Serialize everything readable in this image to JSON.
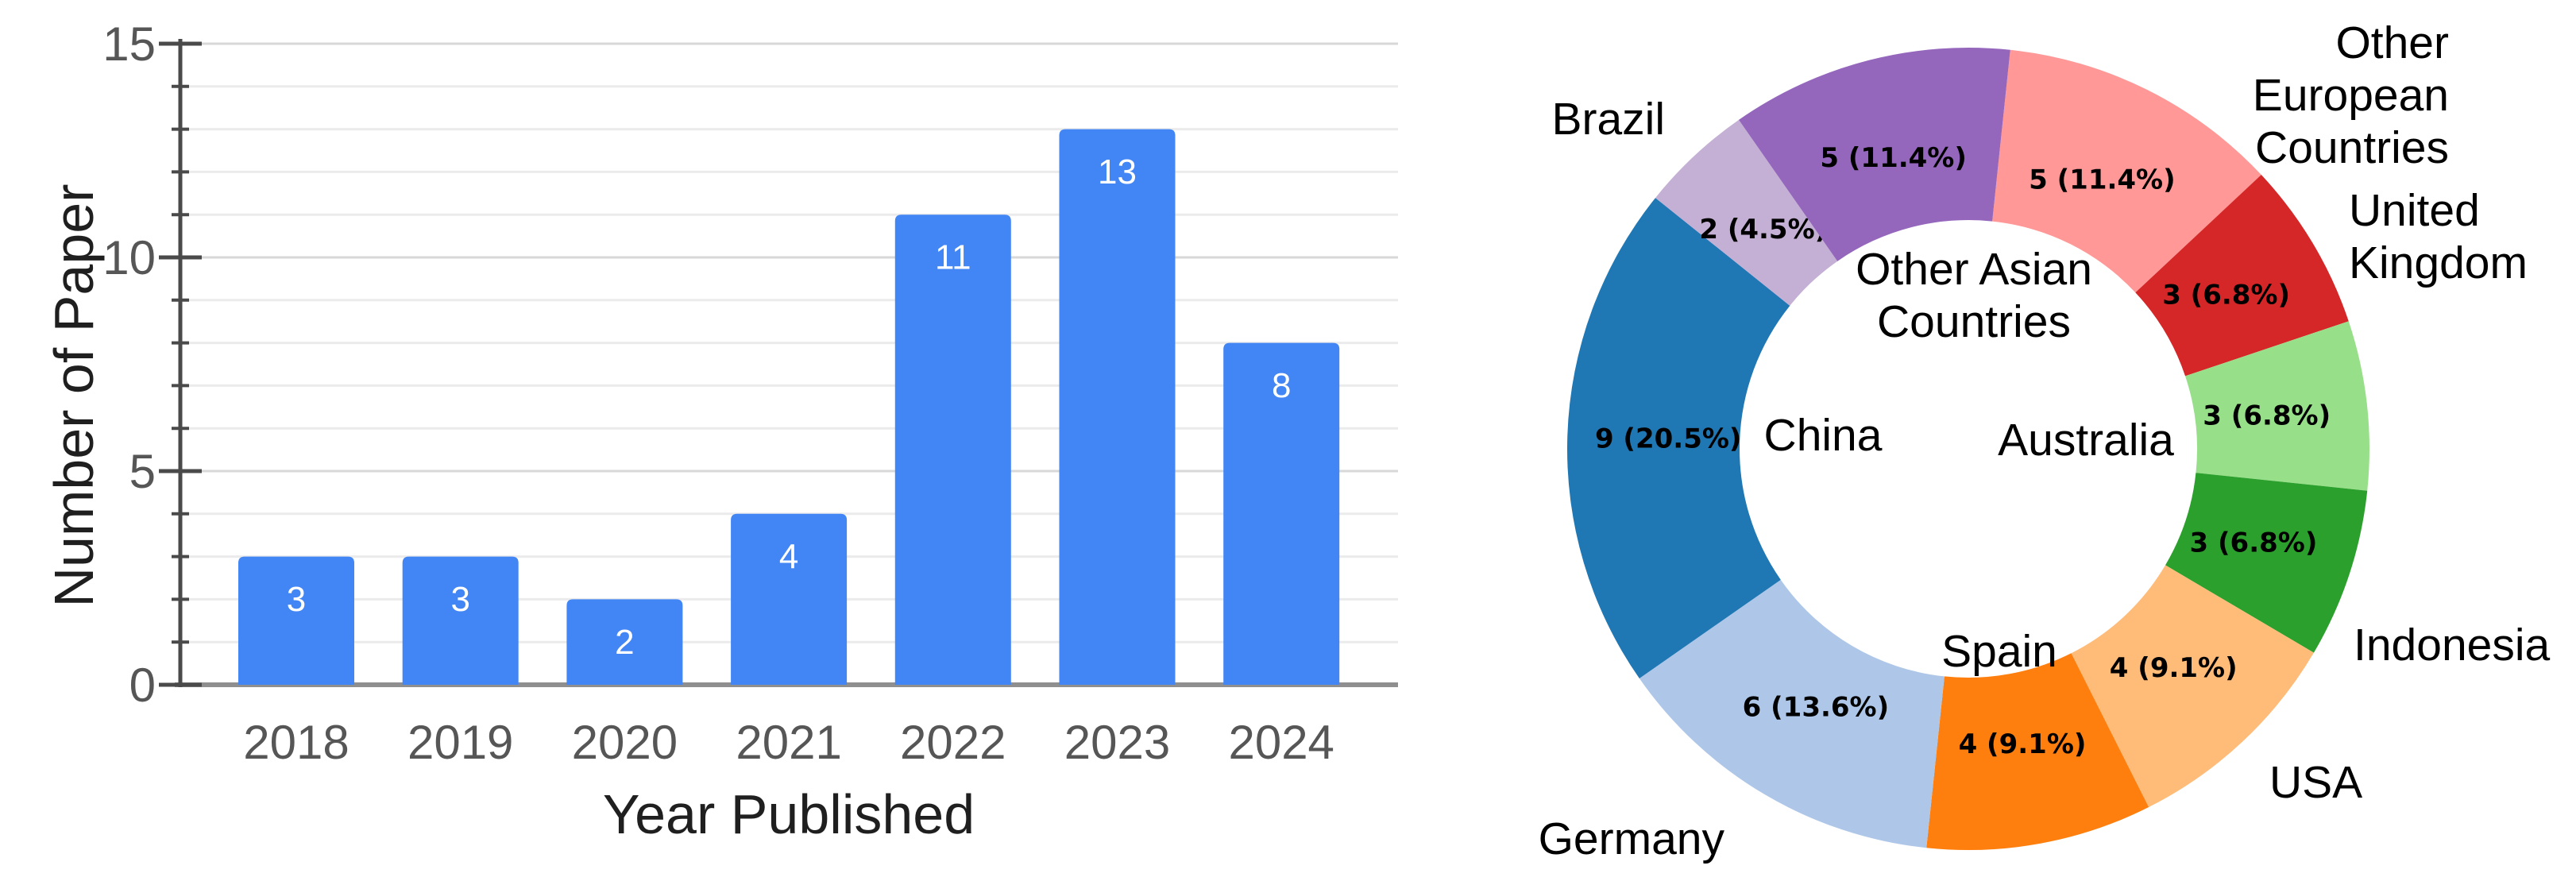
{
  "figure": {
    "background": "#ffffff",
    "left_panel": "bar chart of papers per year",
    "right_panel": "donut chart of papers per country"
  },
  "chart_data": [
    {
      "type": "bar",
      "title": "",
      "xlabel": "Year Published",
      "ylabel": "Number of Paper",
      "categories": [
        "2018",
        "2019",
        "2020",
        "2021",
        "2022",
        "2023",
        "2024"
      ],
      "values": [
        3,
        3,
        2,
        4,
        11,
        13,
        8
      ],
      "bar_labels": [
        "3",
        "3",
        "2",
        "4",
        "11",
        "13",
        "8"
      ],
      "ylim": [
        0,
        15
      ],
      "yticks": [
        0,
        5,
        10,
        15
      ],
      "minor_grid_step": 1,
      "grid": "on",
      "legend": "none",
      "bar_color": "#4285f4",
      "bar_label_color": "#ffffff",
      "grid_minor_color": "#ebebeb",
      "grid_major_color": "#d8d8d8",
      "baseline_color": "#8f8f8f",
      "axis_color": "#4a4a4a"
    },
    {
      "type": "pie",
      "donut": true,
      "title": "",
      "total": 44,
      "start_angle_deg_clockwise_from_top": 6,
      "slices": [
        {
          "label": "Other European Countries",
          "display_label": "Other European\nCountries",
          "value": 5,
          "pct": 11.4,
          "pct_label": "5 (11.4%)",
          "color": "#ff9896",
          "label_placement": "outside"
        },
        {
          "label": "United Kingdom",
          "display_label": "United\nKingdom",
          "value": 3,
          "pct": 6.8,
          "pct_label": "3 (6.8%)",
          "color": "#d62728",
          "label_placement": "outside"
        },
        {
          "label": "Australia",
          "display_label": "Australia",
          "value": 3,
          "pct": 6.8,
          "pct_label": "3 (6.8%)",
          "color": "#98df8a",
          "label_placement": "hole"
        },
        {
          "label": "Indonesia",
          "display_label": "Indonesia",
          "value": 3,
          "pct": 6.8,
          "pct_label": "3 (6.8%)",
          "color": "#2ca02c",
          "label_placement": "outside"
        },
        {
          "label": "USA",
          "display_label": "USA",
          "value": 4,
          "pct": 9.1,
          "pct_label": "4 (9.1%)",
          "color": "#ffbb78",
          "label_placement": "outside"
        },
        {
          "label": "Spain",
          "display_label": "Spain",
          "value": 4,
          "pct": 9.1,
          "pct_label": "4 (9.1%)",
          "color": "#ff7f0e",
          "label_placement": "hole"
        },
        {
          "label": "Germany",
          "display_label": "Germany",
          "value": 6,
          "pct": 13.6,
          "pct_label": "6 (13.6%)",
          "color": "#aec7e8",
          "label_placement": "outside"
        },
        {
          "label": "China",
          "display_label": "China",
          "value": 9,
          "pct": 20.5,
          "pct_label": "9 (20.5%)",
          "color": "#1f77b4",
          "label_placement": "hole"
        },
        {
          "label": "Brazil",
          "display_label": "Brazil",
          "value": 2,
          "pct": 4.5,
          "pct_label": "2 (4.5%)",
          "color": "#c5b0d5",
          "label_placement": "outside"
        },
        {
          "label": "Other Asian Countries",
          "display_label": "Other Asian\nCountries",
          "value": 5,
          "pct": 11.4,
          "pct_label": "5 (11.4%)",
          "color": "#9467bd",
          "label_placement": "hole"
        }
      ]
    }
  ]
}
